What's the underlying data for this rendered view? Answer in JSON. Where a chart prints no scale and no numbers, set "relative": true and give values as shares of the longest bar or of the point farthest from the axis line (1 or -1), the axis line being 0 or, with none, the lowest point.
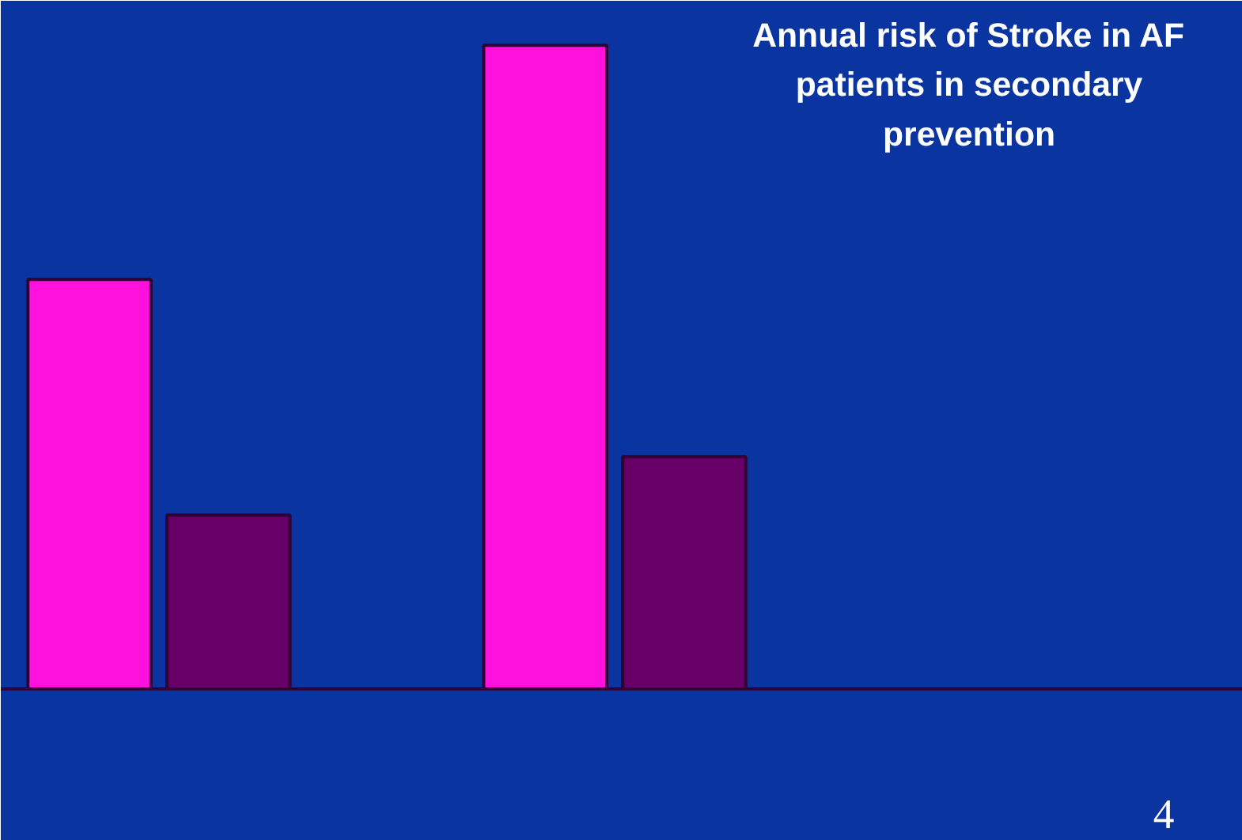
{
  "chart_data": {
    "type": "bar",
    "title": "Annual risk of Stroke in AF patients in secondary prevention",
    "categories": [
      null,
      null
    ],
    "relative": true,
    "series": [
      {
        "color": "#ff11dd",
        "values": [
          0.636,
          1
        ]
      },
      {
        "color": "#660066",
        "values": [
          0.27,
          0.361
        ]
      }
    ],
    "grid": false,
    "annotations": [
      "4"
    ]
  }
}
